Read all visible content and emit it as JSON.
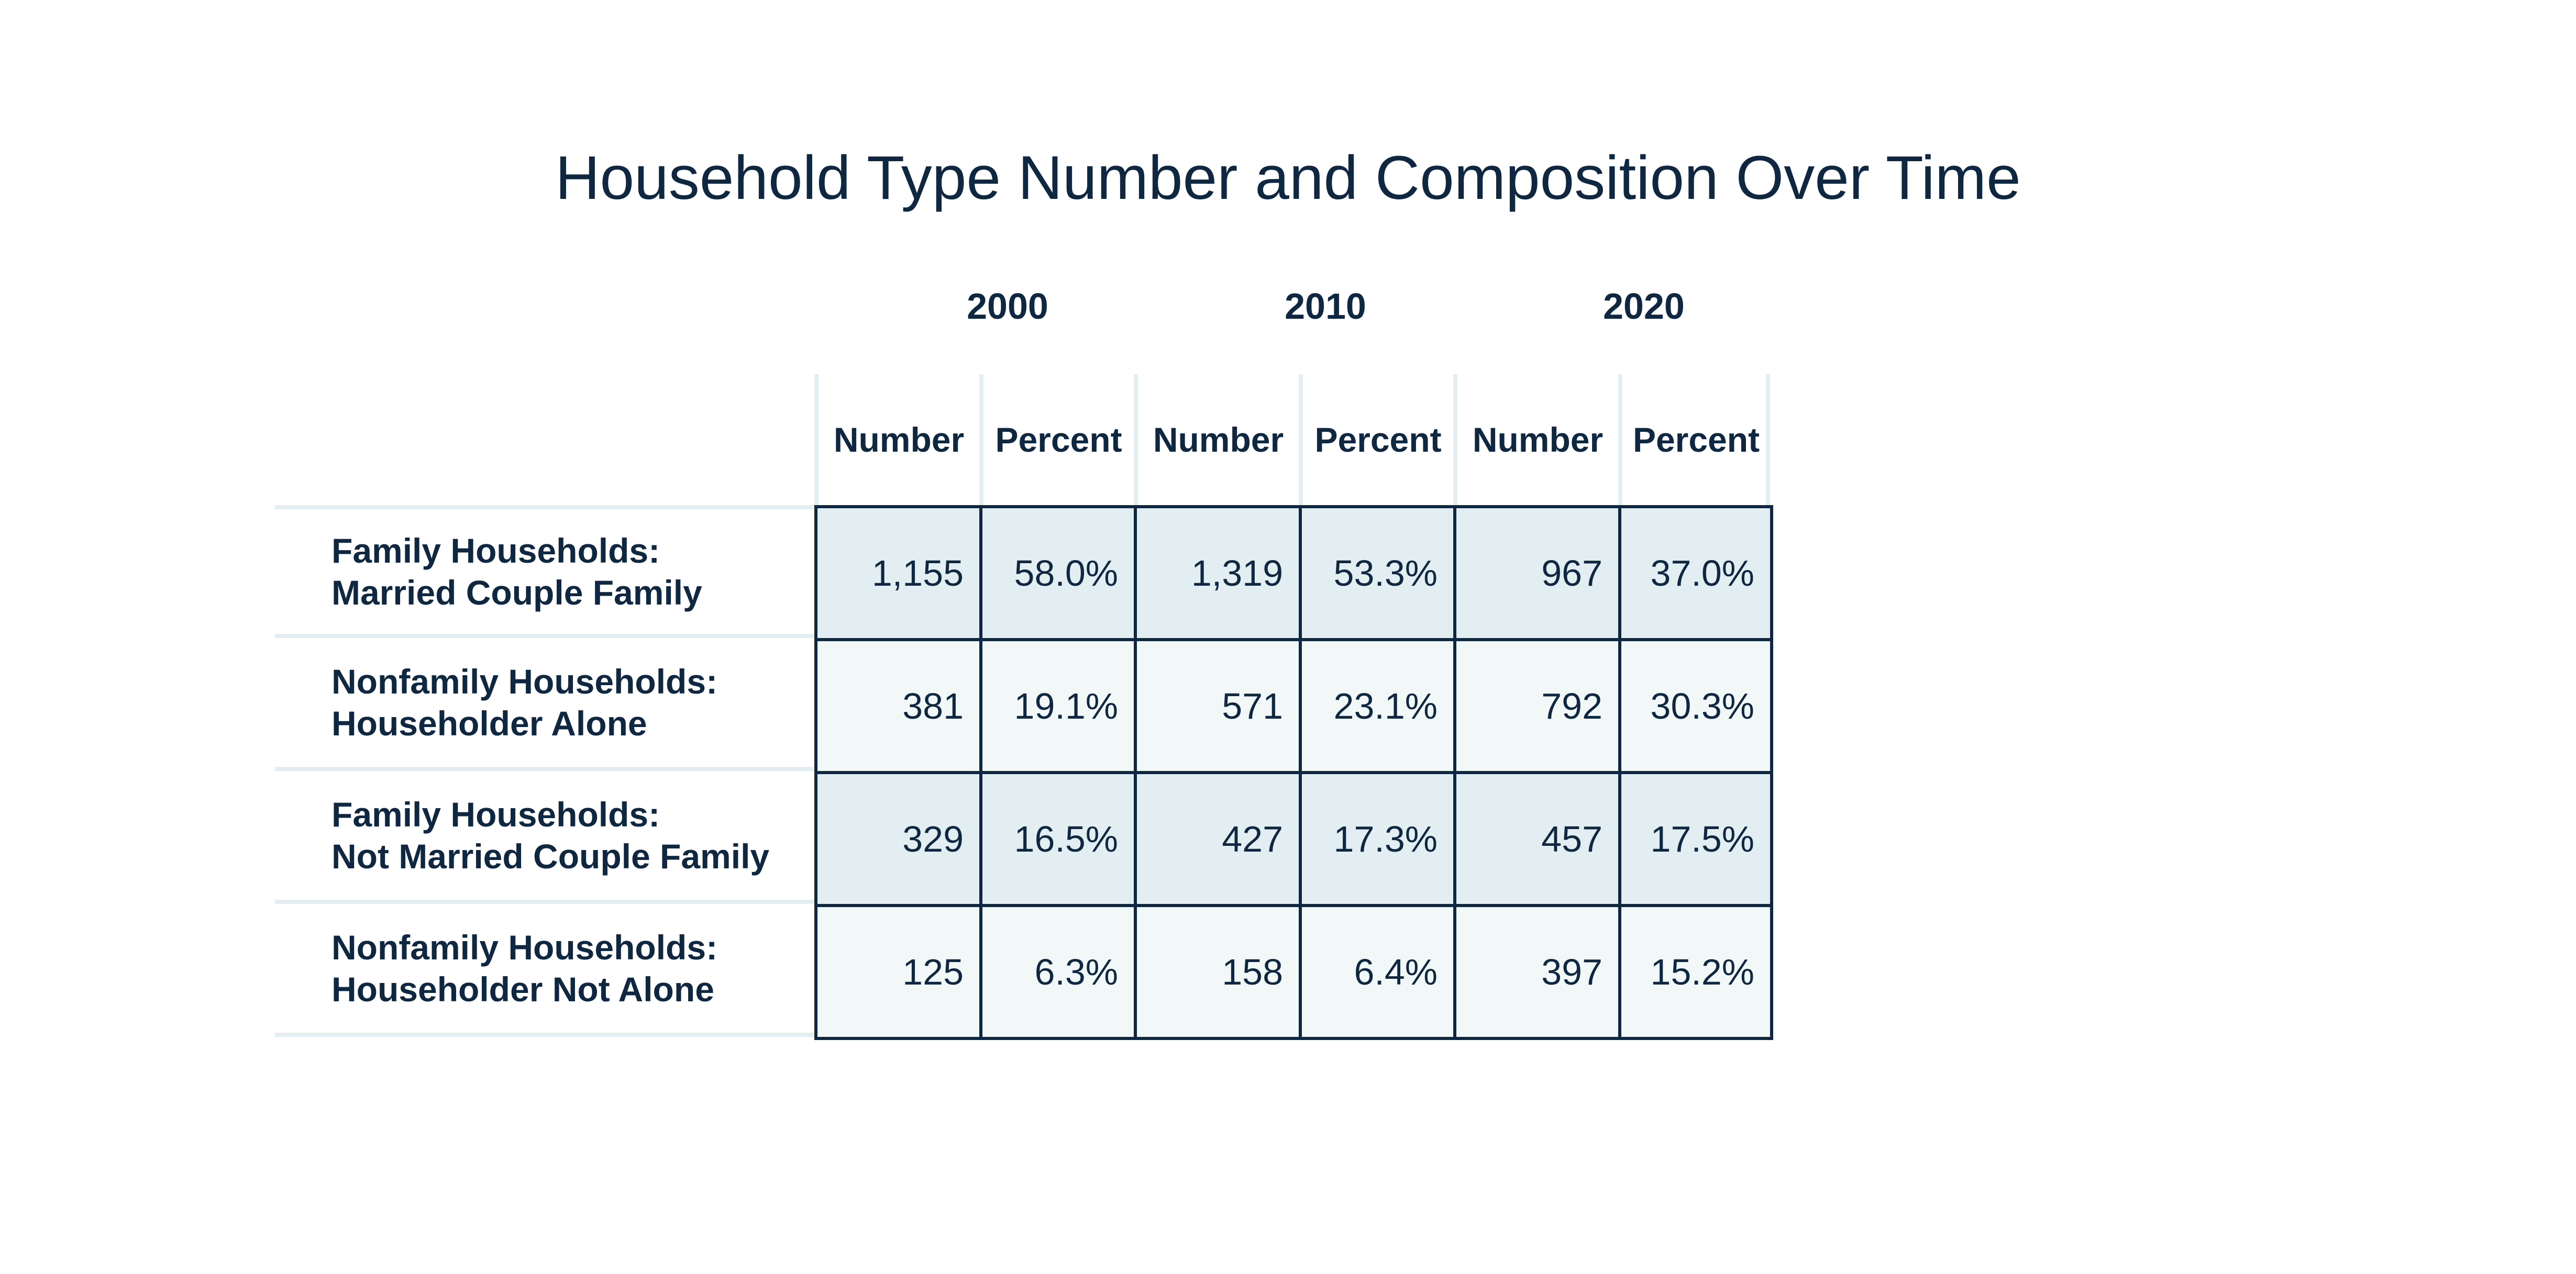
{
  "chart_data": {
    "type": "table",
    "title": "Household Type Number and Composition Over Time",
    "years": [
      "2000",
      "2010",
      "2020"
    ],
    "columns": [
      "Number",
      "Percent",
      "Number",
      "Percent",
      "Number",
      "Percent"
    ],
    "rows": [
      {
        "label_line1": "Family Households:",
        "label_line2": "Married Couple Family",
        "cells": [
          "1,155",
          "58.0%",
          "1,319",
          "53.3%",
          "967",
          "37.0%"
        ]
      },
      {
        "label_line1": "Nonfamily Households:",
        "label_line2": "Householder Alone",
        "cells": [
          "381",
          "19.1%",
          "571",
          "23.1%",
          "792",
          "30.3%"
        ]
      },
      {
        "label_line1": "Family Households:",
        "label_line2": "Not Married Couple Family",
        "cells": [
          "329",
          "16.5%",
          "427",
          "17.3%",
          "457",
          "17.5%"
        ]
      },
      {
        "label_line1": "Nonfamily Households:",
        "label_line2": "Householder Not Alone",
        "cells": [
          "125",
          "6.3%",
          "158",
          "6.4%",
          "397",
          "15.2%"
        ]
      }
    ]
  },
  "colors": {
    "text": "#0f2740",
    "shaded_row": "#e2eef1",
    "light_row": "#f2f8f8",
    "rule": "#e3eef2"
  }
}
